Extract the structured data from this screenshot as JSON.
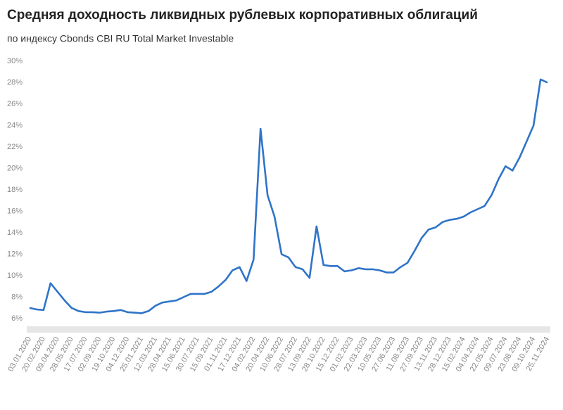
{
  "chart_data": {
    "type": "line",
    "title": "Средняя доходность ликвидных рублевых корпоративных облигаций",
    "subtitle": "по индексу Cbonds CBI RU Total Market Investable",
    "categories": [
      "03.01.2020",
      null,
      "20.02.2020",
      null,
      "09.04.2020",
      null,
      "28.05.2020",
      null,
      "17.07.2020",
      null,
      "02.09.2020",
      null,
      "19.10.2020",
      null,
      "04.12.2020",
      null,
      "25.01.2021",
      null,
      "12.03.2021",
      null,
      "28.04.2021",
      null,
      "15.06.2021",
      null,
      "30.07.2021",
      null,
      "15.09.2021",
      null,
      "01.11.2021",
      null,
      "17.12.2021",
      null,
      "04.02.2022",
      null,
      "20.04.2022",
      null,
      "10.06.2022",
      null,
      "28.07.2022",
      null,
      "13.09.2022",
      null,
      "28.10.2022",
      null,
      "15.12.2022",
      null,
      "01.02.2023",
      null,
      "22.03.2023",
      null,
      "10.05.2023",
      null,
      "27.06.2023",
      null,
      "11.08.2023",
      null,
      "27.09.2023",
      null,
      "13.11.2023",
      null,
      "28.12.2023",
      null,
      "15.02.2024",
      null,
      "04.04.2024",
      null,
      "22.05.2024",
      null,
      "09.07.2024",
      null,
      "23.08.2024",
      null,
      "09.10.2024",
      null,
      "25.11.2024"
    ],
    "series": [
      {
        "color": "#2f74c8",
        "values": [
          7.0,
          6.85,
          6.8,
          9.3,
          8.5,
          7.7,
          7.0,
          6.7,
          6.6,
          6.6,
          6.55,
          6.65,
          6.7,
          6.8,
          6.6,
          6.55,
          6.5,
          6.7,
          7.2,
          7.5,
          7.6,
          7.7,
          8.0,
          8.3,
          8.3,
          8.3,
          8.5,
          9.0,
          9.6,
          10.5,
          10.8,
          9.5,
          11.5,
          23.7,
          17.5,
          15.5,
          12.0,
          11.7,
          10.8,
          10.6,
          9.8,
          14.6,
          11.0,
          10.9,
          10.9,
          10.4,
          10.5,
          10.7,
          10.6,
          10.6,
          10.5,
          10.3,
          10.3,
          10.8,
          11.2,
          12.3,
          13.5,
          14.3,
          14.5,
          15.0,
          15.2,
          15.3,
          15.5,
          15.9,
          16.2,
          16.5,
          17.5,
          19.0,
          20.2,
          19.8,
          21.0,
          22.5,
          24.0,
          28.3,
          28.0
        ]
      }
    ],
    "ylim": [
      6,
      30
    ],
    "yticks": [
      {
        "value": 6,
        "label": "6%"
      },
      {
        "value": 8,
        "label": "8%"
      },
      {
        "value": 10,
        "label": "10%"
      },
      {
        "value": 12,
        "label": "12%"
      },
      {
        "value": 14,
        "label": "14%"
      },
      {
        "value": 16,
        "label": "16%"
      },
      {
        "value": 18,
        "label": "18%"
      },
      {
        "value": 20,
        "label": "20%"
      },
      {
        "value": 22,
        "label": "22%"
      },
      {
        "value": 24,
        "label": "24%"
      },
      {
        "value": 26,
        "label": "26%"
      },
      {
        "value": 28,
        "label": "28%"
      },
      {
        "value": 30,
        "label": "30%"
      }
    ],
    "grid": false
  }
}
